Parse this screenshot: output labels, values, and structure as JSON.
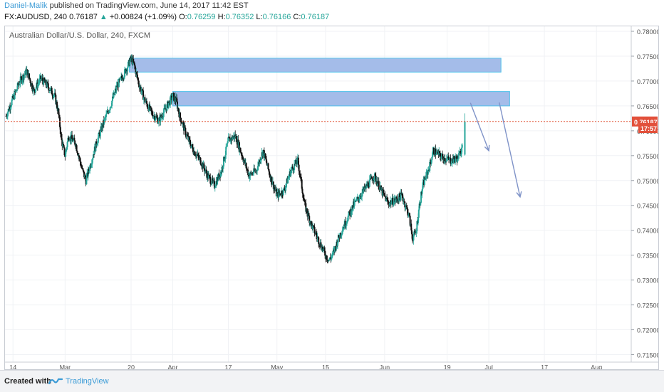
{
  "header": {
    "author": "Daniel-Malik",
    "published_text": "published on TradingView.com, June 14, 2017 11:42 EST",
    "symbol": "FX:AUDUSD, 240",
    "last": "0.76187",
    "change_arrow": "▲",
    "change": "+0.00824 (+1.09%)",
    "open_label": "O:",
    "open": "0.76259",
    "high_label": "H:",
    "high": "0.76352",
    "low_label": "L:",
    "low": "0.76166",
    "close_label": "C:",
    "close": "0.76187"
  },
  "footer": {
    "created_with": "Created with",
    "brand": "TradingView"
  },
  "chart_data": {
    "type": "candlestick",
    "title": "Australian Dollar/U.S. Dollar, 240, FXCM",
    "ylim": [
      0.7135,
      0.781
    ],
    "y_ticks": [
      "0.78000",
      "0.77500",
      "0.77000",
      "0.76500",
      "0.76000",
      "0.75500",
      "0.75000",
      "0.74500",
      "0.74000",
      "0.73500",
      "0.73000",
      "0.72500",
      "0.72000",
      "0.71500"
    ],
    "x_ticks": [
      {
        "label": "14",
        "day": 0
      },
      {
        "label": "Mar",
        "day": 15
      },
      {
        "label": "20",
        "day": 34
      },
      {
        "label": "Apr",
        "day": 46
      },
      {
        "label": "17",
        "day": 62
      },
      {
        "label": "May",
        "day": 76
      },
      {
        "label": "15",
        "day": 90
      },
      {
        "label": "Jun",
        "day": 107
      },
      {
        "label": "19",
        "day": 125
      },
      {
        "label": "Jul",
        "day": 137
      },
      {
        "label": "17",
        "day": 153
      },
      {
        "label": "Aug",
        "day": 168
      }
    ],
    "x_range_days": [
      -2.3,
      178
    ],
    "price_path": [
      [
        -2,
        0.763
      ],
      [
        0,
        0.7665
      ],
      [
        2,
        0.77
      ],
      [
        4,
        0.772
      ],
      [
        6,
        0.768
      ],
      [
        8,
        0.7705
      ],
      [
        10,
        0.769
      ],
      [
        12,
        0.767
      ],
      [
        13,
        0.764
      ],
      [
        14,
        0.758
      ],
      [
        15,
        0.755
      ],
      [
        16,
        0.759
      ],
      [
        18,
        0.7575
      ],
      [
        20,
        0.752
      ],
      [
        21,
        0.75
      ],
      [
        22,
        0.7525
      ],
      [
        24,
        0.7575
      ],
      [
        26,
        0.7615
      ],
      [
        28,
        0.765
      ],
      [
        30,
        0.769
      ],
      [
        32,
        0.7715
      ],
      [
        34,
        0.7745
      ],
      [
        35,
        0.773
      ],
      [
        36,
        0.77
      ],
      [
        38,
        0.766
      ],
      [
        40,
        0.7635
      ],
      [
        42,
        0.762
      ],
      [
        44,
        0.7645
      ],
      [
        46,
        0.767
      ],
      [
        47,
        0.766
      ],
      [
        48,
        0.763
      ],
      [
        50,
        0.759
      ],
      [
        52,
        0.756
      ],
      [
        54,
        0.754
      ],
      [
        56,
        0.751
      ],
      [
        58,
        0.749
      ],
      [
        60,
        0.752
      ],
      [
        62,
        0.758
      ],
      [
        64,
        0.759
      ],
      [
        66,
        0.755
      ],
      [
        68,
        0.751
      ],
      [
        70,
        0.752
      ],
      [
        72,
        0.756
      ],
      [
        74,
        0.751
      ],
      [
        76,
        0.747
      ],
      [
        78,
        0.748
      ],
      [
        80,
        0.752
      ],
      [
        82,
        0.754
      ],
      [
        84,
        0.745
      ],
      [
        86,
        0.741
      ],
      [
        88,
        0.738
      ],
      [
        90,
        0.735
      ],
      [
        91,
        0.734
      ],
      [
        92,
        0.735
      ],
      [
        94,
        0.739
      ],
      [
        96,
        0.742
      ],
      [
        98,
        0.745
      ],
      [
        100,
        0.747
      ],
      [
        102,
        0.749
      ],
      [
        104,
        0.751
      ],
      [
        106,
        0.748
      ],
      [
        108,
        0.7455
      ],
      [
        110,
        0.746
      ],
      [
        112,
        0.747
      ],
      [
        114,
        0.743
      ],
      [
        115,
        0.7385
      ],
      [
        116,
        0.7395
      ],
      [
        117,
        0.745
      ],
      [
        118,
        0.749
      ],
      [
        120,
        0.753
      ],
      [
        121,
        0.756
      ],
      [
        122,
        0.7555
      ],
      [
        124,
        0.7545
      ],
      [
        126,
        0.754
      ],
      [
        128,
        0.7545
      ],
      [
        129,
        0.756
      ],
      [
        130,
        0.7619
      ]
    ],
    "zones": [
      {
        "from_day": 33.5,
        "to_day": 140.5,
        "low": 0.7718,
        "high": 0.7746
      },
      {
        "from_day": 46,
        "to_day": 143,
        "low": 0.765,
        "high": 0.7679
      }
    ],
    "arrows": [
      {
        "from": [
          131.7,
          0.7656
        ],
        "to": [
          137,
          0.756
        ]
      },
      {
        "from": [
          140,
          0.7657
        ],
        "to": [
          146,
          0.7467
        ]
      }
    ],
    "last_price": {
      "value": 0.76187,
      "label": "0.76187",
      "countdown": "17:57",
      "countdown_value": 0.76055
    },
    "colors": {
      "up": "#26a69a",
      "down": "#111111",
      "zone_fill": "#a4bce9",
      "zone_border": "#4fc1ea",
      "arrow": "#7f93c8",
      "price_line": "#e25a3f",
      "label_bg": "#e2503b",
      "grid": "#f0f2f5"
    }
  }
}
